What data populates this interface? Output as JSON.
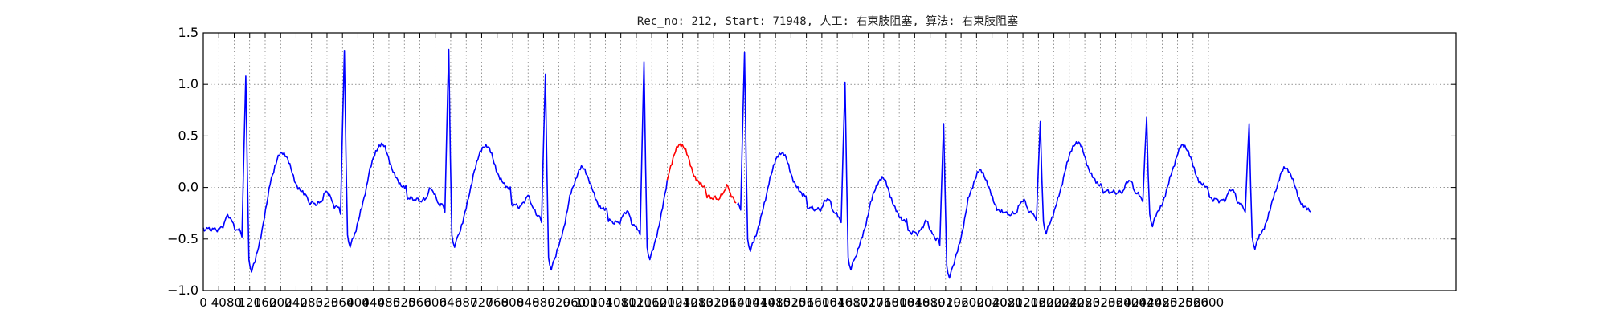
{
  "chart_data": {
    "type": "line",
    "title": "Rec_no: 212, Start: 71948, 人工: 右束肢阻塞, 算法: 右束肢阻塞",
    "xlabel": "",
    "ylabel": "",
    "xlim": [
      0,
      3240
    ],
    "ylim": [
      -1.0,
      1.5
    ],
    "yticks": [
      1.5,
      1.0,
      0.5,
      0.0,
      -0.5,
      -1.0
    ],
    "ytick_labels": [
      "1.5",
      "1.0",
      "0.5",
      "0.0",
      "−0.5",
      "−1.0"
    ],
    "xticks": [
      0,
      40,
      80,
      120,
      160,
      200,
      240,
      280,
      320,
      360,
      400,
      440,
      480,
      520,
      560,
      600,
      640,
      680,
      720,
      760,
      800,
      840,
      880,
      920,
      960,
      1000,
      1040,
      1080,
      1120,
      1160,
      1200,
      1240,
      1280,
      1320,
      1360,
      1400,
      1440,
      1480,
      1520,
      1560,
      1600,
      1640,
      1680,
      1720,
      1760,
      1800,
      1840,
      1880,
      1920,
      1960,
      2000,
      2040,
      2080,
      2120,
      2160,
      2200,
      2240,
      2280,
      2320,
      2360,
      2400,
      2440,
      2480,
      2520,
      2560,
      2600
    ],
    "grid": true,
    "colors": {
      "normal": "#0000ff",
      "highlight": "#ff0000"
    },
    "highlight_range": [
      1200,
      1380
    ],
    "beats": [
      {
        "r": 110,
        "rAmp": 1.08,
        "s": -0.82,
        "t": 0.3,
        "pre": -0.42
      },
      {
        "r": 365,
        "rAmp": 1.33,
        "s": -0.58,
        "t": 0.38,
        "pre": -0.2
      },
      {
        "r": 635,
        "rAmp": 1.34,
        "s": -0.58,
        "t": 0.37,
        "pre": -0.18
      },
      {
        "r": 885,
        "rAmp": 1.1,
        "s": -0.8,
        "t": 0.15,
        "pre": -0.28
      },
      {
        "r": 1140,
        "rAmp": 1.22,
        "s": -0.7,
        "t": 0.38,
        "pre": -0.4
      },
      {
        "r": 1400,
        "rAmp": 1.31,
        "s": -0.62,
        "t": 0.3,
        "pre": -0.16
      },
      {
        "r": 1660,
        "rAmp": 1.02,
        "s": -0.8,
        "t": 0.05,
        "pre": -0.28
      },
      {
        "r": 1915,
        "rAmp": 0.62,
        "s": -0.88,
        "t": 0.12,
        "pre": -0.5
      },
      {
        "r": 2165,
        "rAmp": 0.64,
        "s": -0.45,
        "t": 0.4,
        "pre": -0.26
      },
      {
        "r": 2440,
        "rAmp": 0.68,
        "s": -0.38,
        "t": 0.37,
        "pre": -0.08
      },
      {
        "r": 2705,
        "rAmp": 0.62,
        "s": -0.6,
        "t": 0.15,
        "pre": -0.18
      }
    ],
    "end_x": 2790,
    "end_y": -0.34,
    "start_y": -0.4
  }
}
